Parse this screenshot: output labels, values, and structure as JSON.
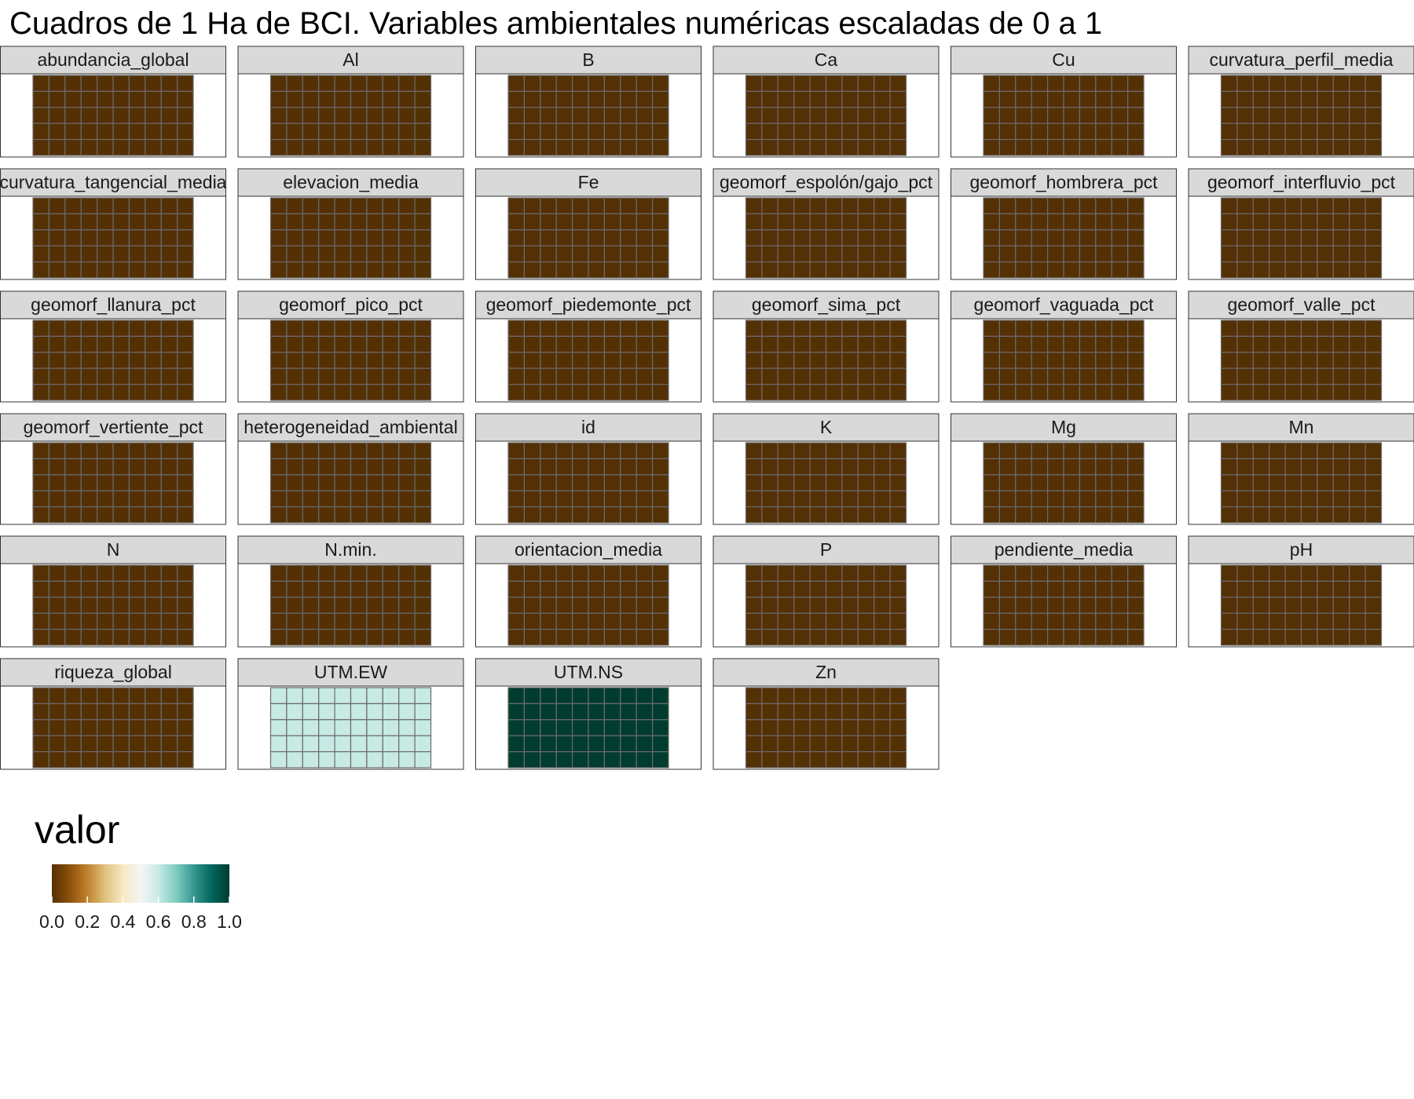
{
  "chart_data": {
    "type": "heatmap",
    "title": "Cuadros de 1 Ha de BCI. Variables ambientales numéricas escaladas de 0 a 1",
    "grid": {
      "columns": 10,
      "rows": 5
    },
    "panels": [
      {
        "name": "abundancia_global",
        "value": 0.0
      },
      {
        "name": "Al",
        "value": 0.0
      },
      {
        "name": "B",
        "value": 0.0
      },
      {
        "name": "Ca",
        "value": 0.0
      },
      {
        "name": "Cu",
        "value": 0.0
      },
      {
        "name": "curvatura_perfil_media",
        "value": 0.0
      },
      {
        "name": "curvatura_tangencial_media",
        "value": 0.0
      },
      {
        "name": "elevacion_media",
        "value": 0.0
      },
      {
        "name": "Fe",
        "value": 0.0
      },
      {
        "name": "geomorf_espolón/gajo_pct",
        "value": 0.0
      },
      {
        "name": "geomorf_hombrera_pct",
        "value": 0.0
      },
      {
        "name": "geomorf_interfluvio_pct",
        "value": 0.0
      },
      {
        "name": "geomorf_llanura_pct",
        "value": 0.0
      },
      {
        "name": "geomorf_pico_pct",
        "value": 0.0
      },
      {
        "name": "geomorf_piedemonte_pct",
        "value": 0.0
      },
      {
        "name": "geomorf_sima_pct",
        "value": 0.0
      },
      {
        "name": "geomorf_vaguada_pct",
        "value": 0.0
      },
      {
        "name": "geomorf_valle_pct",
        "value": 0.0
      },
      {
        "name": "geomorf_vertiente_pct",
        "value": 0.0
      },
      {
        "name": "heterogeneidad_ambiental",
        "value": 0.0
      },
      {
        "name": "id",
        "value": 0.0
      },
      {
        "name": "K",
        "value": 0.0
      },
      {
        "name": "Mg",
        "value": 0.0
      },
      {
        "name": "Mn",
        "value": 0.0
      },
      {
        "name": "N",
        "value": 0.0
      },
      {
        "name": "N.min.",
        "value": 0.0
      },
      {
        "name": "orientacion_media",
        "value": 0.0
      },
      {
        "name": "P",
        "value": 0.0
      },
      {
        "name": "pendiente_media",
        "value": 0.0
      },
      {
        "name": "pH",
        "value": 0.0
      },
      {
        "name": "riqueza_global",
        "value": 0.0
      },
      {
        "name": "UTM.EW",
        "value": 0.6
      },
      {
        "name": "UTM.NS",
        "value": 1.0
      },
      {
        "name": "Zn",
        "value": 0.0
      }
    ],
    "legend": {
      "title": "valor",
      "placement": "bottom-left",
      "range": [
        0,
        1
      ],
      "ticks": [
        "0.0",
        "0.2",
        "0.4",
        "0.6",
        "0.8",
        "1.0"
      ],
      "colors": [
        "#543005",
        "#8c510a",
        "#bf812d",
        "#dfc27d",
        "#f6e8c3",
        "#f5f5f5",
        "#c7eae5",
        "#80cdc1",
        "#35978f",
        "#01665e",
        "#003c30"
      ]
    }
  }
}
